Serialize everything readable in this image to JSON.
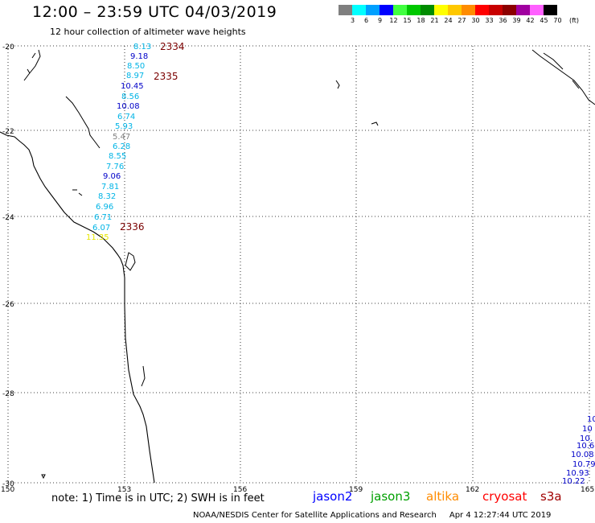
{
  "header": {
    "title": "12:00 – 23:59 UTC 04/03/2019",
    "subtitle": "12 hour collection of altimeter wave heights"
  },
  "legend": {
    "unit": "(ft)",
    "bins": [
      {
        "label": "3",
        "color": "#7f7f7f"
      },
      {
        "label": "6",
        "color": "#00ffff"
      },
      {
        "label": "9",
        "color": "#00a0ff"
      },
      {
        "label": "12",
        "color": "#0000ff"
      },
      {
        "label": "15",
        "color": "#40ff40"
      },
      {
        "label": "18",
        "color": "#00c800"
      },
      {
        "label": "21",
        "color": "#008c00"
      },
      {
        "label": "24",
        "color": "#ffff00"
      },
      {
        "label": "27",
        "color": "#ffc800"
      },
      {
        "label": "30",
        "color": "#ff8c00"
      },
      {
        "label": "33",
        "color": "#ff0000"
      },
      {
        "label": "36",
        "color": "#c80000"
      },
      {
        "label": "39",
        "color": "#8c0000"
      },
      {
        "label": "42",
        "color": "#a000a0"
      },
      {
        "label": "45",
        "color": "#ff60ff"
      },
      {
        "label": "70",
        "color": "#000000"
      }
    ]
  },
  "map": {
    "lon_range": [
      150,
      165
    ],
    "lat_range": [
      -30,
      -20
    ],
    "lat_labels": [
      "-20",
      "-22",
      "-24",
      "-26",
      "-28",
      "-30"
    ],
    "lon_labels": [
      "150",
      "153",
      "156",
      "159",
      "162",
      "165"
    ],
    "wave_colors": {
      "cyan": "#00b4e6",
      "blue": "#0000c8",
      "yellow": "#e6e600",
      "gray": "#808080"
    },
    "track_label_color": "#7a0000",
    "track_labels": [
      "2334",
      "2335",
      "2336"
    ],
    "wave_heights": [
      "8.13",
      "9.18",
      "8.50",
      "8.97",
      "10.45",
      "8.56",
      "10.08",
      "6.74",
      "5.93",
      "5.47",
      "6.28",
      "8.55",
      "7.76",
      "9.06",
      "7.81",
      "8.32",
      "6.96",
      "6.71",
      "6.07",
      "11.35"
    ],
    "edge_values": [
      "10",
      "10",
      "10.",
      "10.6",
      "10.08",
      "10.79",
      "10.93",
      "10.22"
    ]
  },
  "footer": {
    "note": "note: 1) Time is in UTC; 2) SWH is in feet",
    "satellites": [
      {
        "name": "jason2",
        "color": "#0000ff"
      },
      {
        "name": "jason3",
        "color": "#00a000"
      },
      {
        "name": "altika",
        "color": "#ff8c00"
      },
      {
        "name": "cryosat",
        "color": "#ff0000"
      },
      {
        "name": "s3a",
        "color": "#a00000"
      }
    ],
    "credit": "NOAA/NESDIS Center for Satellite Applications and Research",
    "timestamp": "Apr  4 12:27:44 UTC 2019"
  }
}
